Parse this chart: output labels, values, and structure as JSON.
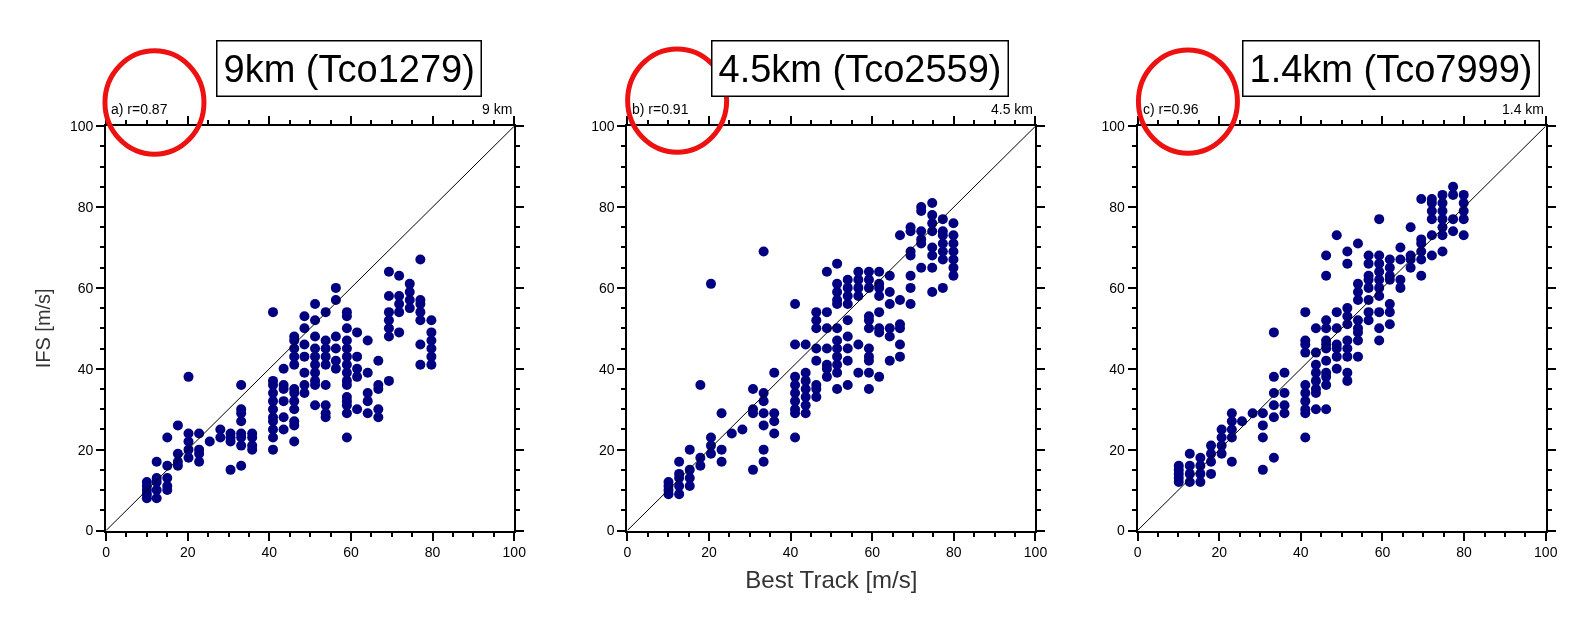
{
  "chart_data": [
    {
      "type": "scatter",
      "title": "9km (Tco1279)",
      "ylabel": "IFS [m/s]",
      "annotations": [
        "a) r=0.87",
        "9 km"
      ],
      "xlim": [
        0,
        100
      ],
      "ylim": [
        0,
        100
      ],
      "xticks": [
        0,
        20,
        40,
        60,
        80,
        100
      ],
      "yticks": [
        0,
        20,
        40,
        60,
        80,
        100
      ],
      "grid": false,
      "marker": "circle",
      "series": [
        {
          "color": "#000080",
          "x": [
            10,
            10,
            10,
            10,
            10,
            12.4,
            12.4,
            12.4,
            12.4,
            12.4,
            15,
            15,
            15,
            15,
            15,
            17.6,
            17.6,
            17.6,
            17.6,
            20.2,
            20.2,
            20.2,
            20.2,
            20.2,
            22.8,
            22.8,
            22.8,
            22.8,
            25.4,
            28,
            28,
            30.5,
            30.5,
            30.5,
            30.5,
            33.1,
            33.1,
            33.1,
            33.1,
            33.1,
            33.1,
            33.1,
            33.1,
            35.8,
            35.8,
            35.8,
            35.8,
            40.9,
            40.9,
            40.9,
            40.9,
            40.9,
            40.9,
            40.9,
            40.9,
            40.9,
            40.9,
            40.9,
            43.5,
            43.5,
            43.5,
            43.5,
            43.5,
            43.5,
            46.1,
            46.1,
            46.1,
            46.1,
            46.1,
            46.1,
            46.1,
            46.1,
            46.1,
            46.1,
            46.1,
            46.1,
            48.6,
            48.6,
            48.6,
            48.6,
            48.6,
            48.6,
            48.6,
            51.2,
            51.2,
            51.2,
            51.2,
            51.2,
            51.2,
            51.2,
            51.2,
            51.2,
            51.2,
            53.8,
            53.8,
            53.8,
            53.8,
            53.8,
            53.8,
            53.8,
            53.8,
            53.8,
            56.3,
            56.3,
            56.3,
            56.3,
            56.3,
            56.3,
            59,
            59,
            59,
            59,
            59,
            59,
            59,
            59,
            59,
            59,
            59,
            59,
            59,
            59,
            59,
            61.5,
            61.5,
            61.5,
            61.5,
            61.5,
            64.1,
            64.1,
            64.1,
            64.1,
            64.1,
            66.7,
            66.7,
            66.7,
            66.7,
            66.7,
            69.3,
            69.3,
            69.3,
            69.3,
            69.3,
            69.3,
            69.3,
            71.8,
            71.8,
            71.8,
            71.8,
            71.8,
            74.4,
            74.4,
            74.4,
            74.4,
            77,
            77,
            77,
            77,
            77,
            77,
            77,
            79.7,
            79.7,
            79.7,
            79.7,
            79.7,
            79.7
          ],
          "values": [
            8,
            9,
            10,
            11,
            12,
            8,
            10,
            12,
            13,
            17,
            10,
            11,
            13,
            16,
            23,
            16,
            17,
            19,
            26,
            18,
            20,
            22,
            24,
            38,
            17,
            19,
            20,
            24,
            22,
            23,
            25,
            15,
            22,
            23,
            24,
            16,
            21,
            23,
            24,
            27,
            29,
            30,
            36,
            20,
            21,
            23,
            24,
            20,
            23,
            25,
            27,
            28,
            30,
            32,
            34,
            36,
            37,
            54,
            25,
            28,
            32,
            35,
            36,
            40,
            22,
            26,
            27,
            30,
            32,
            34,
            35,
            41,
            43,
            45,
            47,
            48,
            34,
            36,
            39,
            43,
            46,
            50,
            53,
            31,
            36,
            37,
            39,
            41,
            43,
            45,
            48,
            52,
            56,
            28,
            29,
            31,
            36,
            41,
            43,
            45,
            47,
            54,
            40,
            42,
            45,
            48,
            57,
            60,
            23,
            29,
            31,
            32,
            33,
            36,
            37,
            39,
            41,
            43,
            45,
            47,
            50,
            53,
            54,
            30,
            38,
            40,
            43,
            49,
            29,
            32,
            34,
            39,
            47,
            28,
            30,
            35,
            36,
            42,
            37,
            48,
            50,
            52,
            54,
            58,
            64,
            49,
            54,
            56,
            58,
            63,
            55,
            57,
            59,
            61,
            41,
            46,
            52,
            54,
            56,
            57,
            67,
            41,
            43,
            45,
            47,
            49,
            52
          ]
        },
        {
          "type": "line",
          "marker": "none",
          "color": "#000000",
          "x": [
            0,
            100
          ],
          "values": [
            0,
            100
          ]
        }
      ]
    },
    {
      "type": "scatter",
      "title": "4.5km (Tco2559)",
      "xlabel": "Best Track [m/s]",
      "annotations": [
        "b) r=0.91",
        "4.5 km"
      ],
      "xlim": [
        0,
        100
      ],
      "ylim": [
        0,
        100
      ],
      "xticks": [
        0,
        20,
        40,
        60,
        80,
        100
      ],
      "yticks": [
        0,
        20,
        40,
        60,
        80,
        100
      ],
      "grid": false,
      "marker": "circle",
      "series": [
        {
          "color": "#000080",
          "x": [
            10.1,
            10.1,
            10.1,
            10.1,
            12.7,
            12.7,
            12.7,
            12.7,
            12.7,
            15.3,
            15.3,
            15.3,
            15.3,
            17.9,
            17.9,
            17.9,
            20.5,
            20.5,
            20.5,
            20.5,
            23.1,
            23.1,
            23.1,
            25.6,
            28.2,
            30.8,
            30.8,
            30.8,
            30.8,
            33.4,
            33.4,
            33.4,
            33.4,
            33.4,
            33.4,
            33.4,
            36,
            36,
            36,
            36,
            41.1,
            41.1,
            41.1,
            41.1,
            41.1,
            41.1,
            41.1,
            41.1,
            41.1,
            43.7,
            43.7,
            43.7,
            43.7,
            43.7,
            43.7,
            43.7,
            46.3,
            46.3,
            46.3,
            46.3,
            46.3,
            46.3,
            46.3,
            46.3,
            48.9,
            48.9,
            48.9,
            48.9,
            48.9,
            48.9,
            48.9,
            51.4,
            51.4,
            51.4,
            51.4,
            51.4,
            51.4,
            51.4,
            51.4,
            51.4,
            51.4,
            51.4,
            51.4,
            54,
            54,
            54,
            54,
            54,
            54,
            54,
            54,
            54,
            56.6,
            56.6,
            56.6,
            56.6,
            56.6,
            56.6,
            59.2,
            59.2,
            59.2,
            59.2,
            59.2,
            59.2,
            59.2,
            59.2,
            59.2,
            59.2,
            59.2,
            61.7,
            61.7,
            61.7,
            61.7,
            61.7,
            61.7,
            61.7,
            61.7,
            64.3,
            64.3,
            64.3,
            64.3,
            64.3,
            64.3,
            66.8,
            66.8,
            66.8,
            66.8,
            66.8,
            66.8,
            69.4,
            69.4,
            69.4,
            69.4,
            69.4,
            69.4,
            69.4,
            72,
            72,
            72,
            72,
            72,
            72,
            74.7,
            74.7,
            74.7,
            74.7,
            74.7,
            74.7,
            74.7,
            74.7,
            77.3,
            77.3,
            77.3,
            77.3,
            77.3,
            77.3,
            77.3,
            79.9,
            79.9,
            79.9,
            79.9,
            79.9,
            79.9,
            79.9
          ],
          "values": [
            9,
            10,
            11,
            12,
            9,
            11,
            13,
            14,
            17,
            11,
            13,
            15,
            20,
            16,
            18,
            36,
            19,
            21,
            23,
            61,
            17,
            20,
            29,
            24,
            25,
            15,
            29,
            30,
            35,
            17,
            20,
            26,
            29,
            32,
            34,
            69,
            24,
            27,
            29,
            39,
            23,
            29,
            30,
            32,
            34,
            36,
            38,
            46,
            56,
            29,
            31,
            33,
            35,
            37,
            39,
            46,
            33,
            35,
            36,
            42,
            45,
            50,
            52,
            54,
            38,
            40,
            41,
            45,
            50,
            54,
            64,
            35,
            39,
            41,
            43,
            45,
            47,
            50,
            56,
            57,
            59,
            61,
            66,
            36,
            42,
            45,
            48,
            52,
            56,
            58,
            60,
            62,
            39,
            46,
            58,
            60,
            62,
            64,
            35,
            39,
            42,
            43,
            45,
            50,
            52,
            53,
            60,
            62,
            64,
            38,
            49,
            50,
            54,
            58,
            60,
            61,
            64,
            42,
            48,
            50,
            56,
            59,
            63,
            43,
            46,
            50,
            51,
            57,
            73,
            56,
            60,
            63,
            68,
            69,
            74,
            75,
            65,
            71,
            72,
            74,
            79,
            80,
            59,
            65,
            68,
            70,
            74,
            76,
            78,
            81,
            60,
            67,
            69,
            71,
            73,
            74,
            77,
            63,
            65,
            67,
            69,
            71,
            73,
            76
          ]
        },
        {
          "type": "line",
          "marker": "none",
          "color": "#000000",
          "x": [
            0,
            100
          ],
          "values": [
            0,
            100
          ]
        }
      ]
    },
    {
      "type": "scatter",
      "title": "1.4km (Tco7999)",
      "annotations": [
        "c) r=0.96",
        "1.4 km"
      ],
      "xlim": [
        0,
        100
      ],
      "ylim": [
        0,
        100
      ],
      "xticks": [
        0,
        20,
        40,
        60,
        80,
        100
      ],
      "yticks": [
        0,
        20,
        40,
        60,
        80,
        100
      ],
      "grid": false,
      "marker": "circle",
      "series": [
        {
          "color": "#000080",
          "x": [
            10.1,
            10.1,
            10.1,
            10.1,
            10.1,
            12.8,
            12.8,
            12.8,
            12.8,
            15.4,
            15.4,
            15.4,
            15.4,
            18,
            18,
            18,
            18,
            20.6,
            20.6,
            20.6,
            20.6,
            23.1,
            23.1,
            23.1,
            23.1,
            23.1,
            25.6,
            28.2,
            30.7,
            30.7,
            30.7,
            30.7,
            33.4,
            33.4,
            33.4,
            33.4,
            33.4,
            33.4,
            36,
            36,
            36,
            36,
            41.1,
            41.1,
            41.1,
            41.1,
            41.1,
            41.1,
            41.1,
            41.1,
            41.1,
            41.1,
            43.7,
            43.7,
            43.7,
            43.7,
            43.7,
            43.7,
            43.7,
            43.7,
            46.2,
            46.2,
            46.2,
            46.2,
            46.2,
            46.2,
            46.2,
            46.2,
            46.2,
            46.2,
            46.2,
            46.2,
            48.8,
            48.8,
            48.8,
            48.8,
            48.8,
            48.8,
            48.8,
            51.4,
            51.4,
            51.4,
            51.4,
            51.4,
            51.4,
            51.4,
            51.4,
            51.4,
            51.4,
            54,
            54,
            54,
            54,
            54,
            54,
            54,
            54,
            54,
            56.6,
            56.6,
            56.6,
            56.6,
            56.6,
            56.6,
            56.6,
            56.6,
            59.2,
            59.2,
            59.2,
            59.2,
            59.2,
            59.2,
            59.2,
            59.2,
            59.2,
            59.2,
            61.8,
            61.8,
            61.8,
            61.8,
            61.8,
            61.8,
            61.8,
            64.4,
            64.4,
            64.4,
            64.4,
            66.9,
            66.9,
            66.9,
            66.9,
            69.5,
            69.5,
            69.5,
            69.5,
            69.5,
            69.5,
            72.1,
            72.1,
            72.1,
            72.1,
            72.1,
            72.1,
            74.7,
            74.7,
            74.7,
            74.7,
            74.7,
            74.7,
            74.7,
            77.3,
            77.3,
            77.3,
            77.3,
            79.9,
            79.9,
            79.9,
            79.9,
            79.9
          ],
          "values": [
            12,
            13,
            14,
            15,
            16,
            12,
            14,
            16,
            19,
            12,
            14,
            16,
            18,
            14,
            17,
            19,
            21,
            19,
            21,
            23,
            25,
            17,
            23,
            25,
            27,
            29,
            27,
            29,
            15,
            23,
            26,
            29,
            18,
            28,
            31,
            34,
            38,
            49,
            29,
            31,
            34,
            39,
            23,
            29,
            30,
            32,
            34,
            36,
            44,
            46,
            47,
            54,
            30,
            34,
            35,
            37,
            39,
            41,
            44,
            50,
            30,
            36,
            38,
            39,
            42,
            45,
            46,
            47,
            50,
            52,
            63,
            68,
            40,
            43,
            45,
            46,
            50,
            54,
            73,
            37,
            39,
            43,
            45,
            47,
            51,
            53,
            55,
            66,
            69,
            43,
            47,
            49,
            50,
            52,
            57,
            59,
            61,
            71,
            52,
            54,
            57,
            60,
            62,
            63,
            66,
            68,
            47,
            50,
            54,
            58,
            60,
            62,
            64,
            66,
            68,
            77,
            51,
            54,
            56,
            62,
            63,
            65,
            67,
            60,
            62,
            67,
            70,
            65,
            67,
            68,
            75,
            63,
            67,
            69,
            71,
            72,
            82,
            68,
            73,
            77,
            79,
            81,
            82,
            69,
            73,
            75,
            77,
            79,
            81,
            83,
            74,
            77,
            83,
            85,
            73,
            77,
            79,
            81,
            83
          ]
        },
        {
          "type": "line",
          "marker": "none",
          "color": "#000000",
          "x": [
            0,
            100
          ],
          "values": [
            0,
            100
          ]
        }
      ]
    }
  ]
}
